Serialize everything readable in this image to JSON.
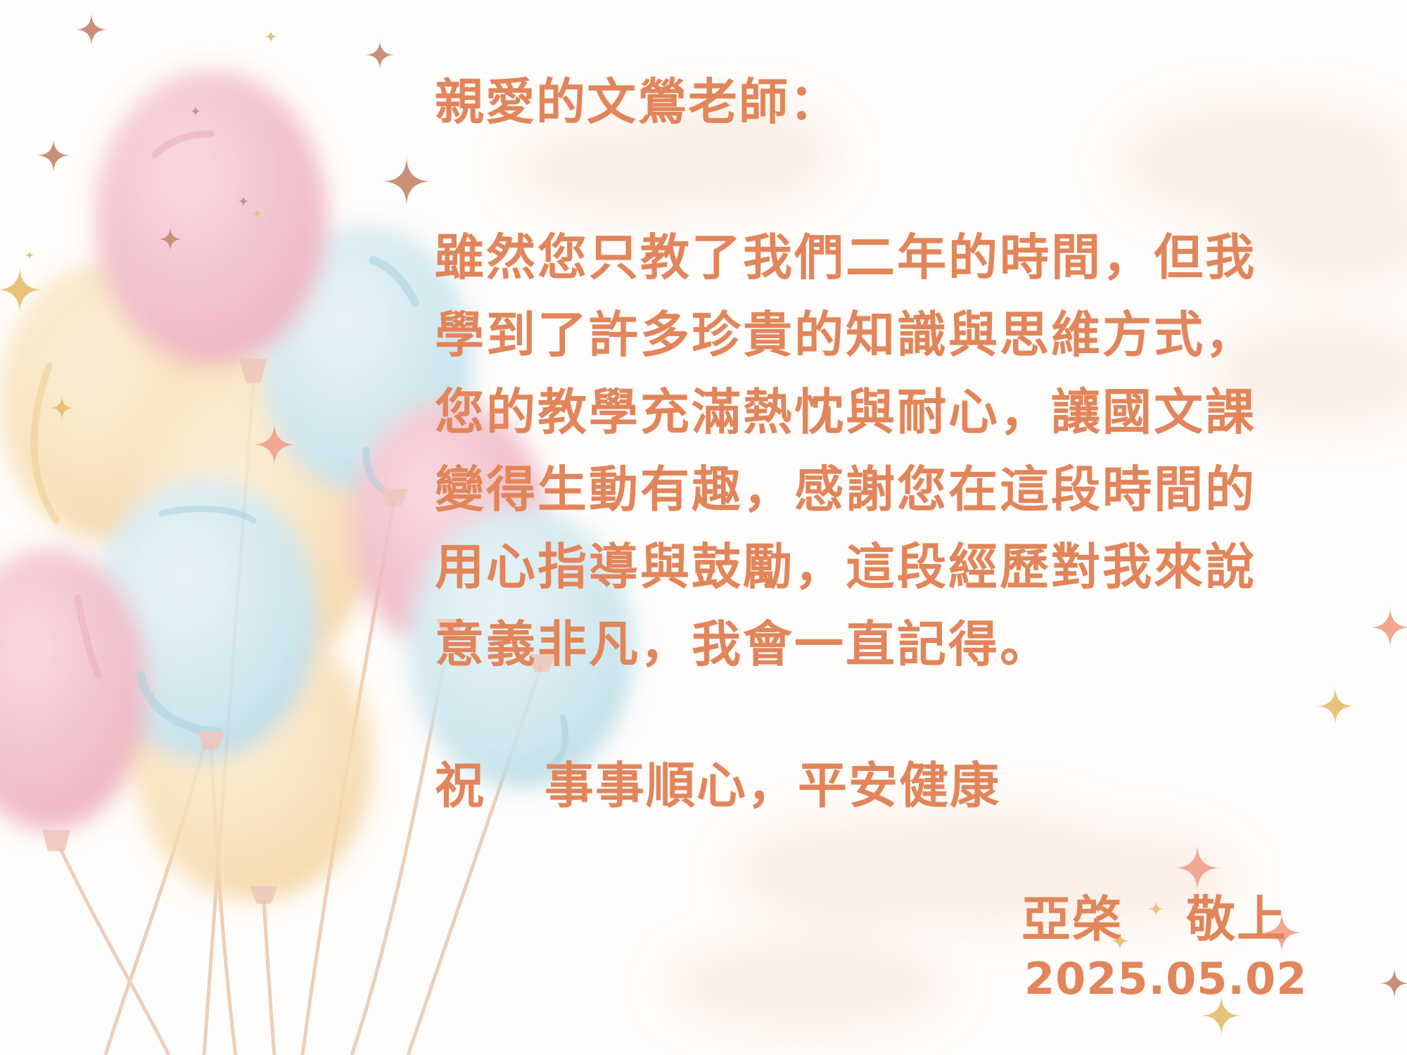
{
  "letter": {
    "salutation": "親愛的文鶯老師：",
    "body_lines": [
      "雖然您只教了我們二年的時間，但我",
      "學到了許多珍貴的知識與思維方式，",
      "您的教學充滿熱忱與耐心，讓國文課",
      "變得生動有趣，感謝您在這段時間的",
      "用心指導與鼓勵，這段經歷對我來說",
      "意義非凡，我會一直記得。"
    ],
    "closing": {
      "word": "祝",
      "wish": "事事順心，平安健康"
    },
    "signature": {
      "name": "亞棨",
      "honorific": "敬上"
    },
    "date": "2025.05.02"
  },
  "decorations": {
    "text_color": "#e2855a",
    "balloon_colors": [
      "#f2b9c6",
      "#bfe0ea",
      "#f7dcae"
    ],
    "sparkle_colors": [
      "#c98f78",
      "#e8c27a",
      "#f2a790"
    ]
  }
}
